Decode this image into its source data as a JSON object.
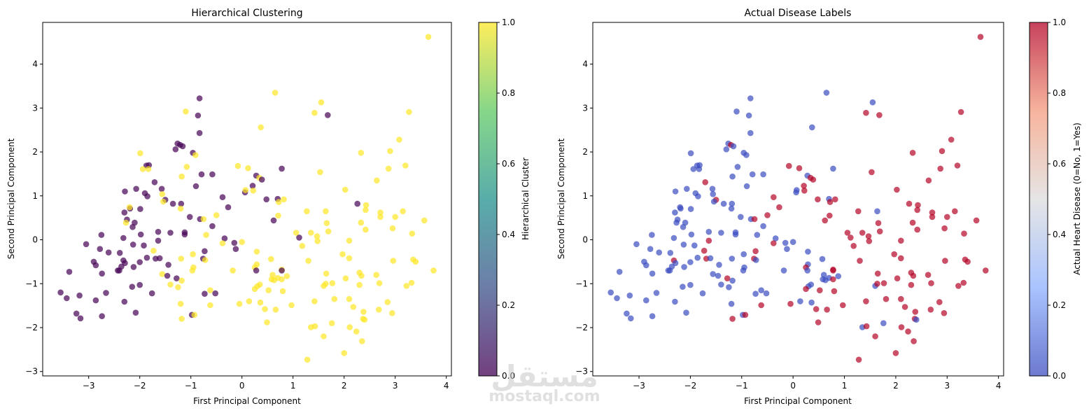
{
  "chart_data": [
    {
      "type": "scatter",
      "id": "hierarchical",
      "title": "Hierarchical Clustering",
      "xlabel": "First Principal Component",
      "ylabel": "Second Principal Component",
      "xlim": [
        -3.9,
        4.1
      ],
      "ylim": [
        -3.1,
        4.95
      ],
      "xticks": [
        -3,
        -2,
        -1,
        0,
        1,
        2,
        3,
        4
      ],
      "xtick_labels": [
        "−3",
        "−2",
        "−1",
        "0",
        "1",
        "2",
        "3",
        "4"
      ],
      "yticks": [
        -3,
        -2,
        -1,
        0,
        1,
        2,
        3,
        4
      ],
      "ytick_labels": [
        "−3",
        "−2",
        "−1",
        "0",
        "1",
        "2",
        "3",
        "4"
      ],
      "color_field": "cluster",
      "colormap": "viridis",
      "alpha": 0.7,
      "colorbar": {
        "label": "Hierarchical Cluster",
        "range": [
          0.0,
          1.0
        ],
        "ticks": [
          "0.0",
          "0.2",
          "0.4",
          "0.6",
          "0.8",
          "1.0"
        ],
        "stops": [
          "#440154",
          "#3b528b",
          "#21918c",
          "#5ec962",
          "#fde725"
        ]
      },
      "grid": false
    },
    {
      "type": "scatter",
      "id": "actual",
      "title": "Actual Disease Labels",
      "xlabel": "First Principal Component",
      "ylabel": "Second Principal Component",
      "xlim": [
        -3.9,
        4.1
      ],
      "ylim": [
        -3.1,
        4.95
      ],
      "xticks": [
        -3,
        -2,
        -1,
        0,
        1,
        2,
        3,
        4
      ],
      "xtick_labels": [
        "−3",
        "−2",
        "−1",
        "0",
        "1",
        "2",
        "3",
        "4"
      ],
      "yticks": [
        -3,
        -2,
        -1,
        0,
        1,
        2,
        3,
        4
      ],
      "ytick_labels": [
        "−3",
        "−2",
        "−1",
        "0",
        "1",
        "2",
        "3",
        "4"
      ],
      "color_field": "disease",
      "colormap": "coolwarm",
      "alpha": 0.7,
      "colorbar": {
        "label": "Actual Heart Disease (0=No, 1=Yes)",
        "range": [
          0.0,
          1.0
        ],
        "ticks": [
          "0.0",
          "0.2",
          "0.4",
          "0.6",
          "0.8",
          "1.0"
        ],
        "stops": [
          "#3b4cc0",
          "#8db0fe",
          "#dddddd",
          "#f49a7b",
          "#b40426"
        ]
      },
      "grid": false
    }
  ],
  "points_fields": [
    "x",
    "y",
    "cluster",
    "disease"
  ],
  "points": [
    [
      3.65,
      4.62,
      1,
      1
    ],
    [
      0.65,
      3.35,
      1,
      0
    ],
    [
      1.55,
      3.13,
      1,
      0
    ],
    [
      1.42,
      2.89,
      1,
      1
    ],
    [
      1.68,
      2.84,
      0,
      1
    ],
    [
      3.27,
      2.91,
      1,
      1
    ],
    [
      -0.83,
      3.22,
      0,
      0
    ],
    [
      -1.1,
      2.92,
      1,
      0
    ],
    [
      -0.86,
      2.83,
      0,
      0
    ],
    [
      -0.83,
      2.43,
      0,
      0
    ],
    [
      0.37,
      2.56,
      1,
      0
    ],
    [
      3.08,
      2.28,
      1,
      1
    ],
    [
      2.33,
      1.98,
      1,
      1
    ],
    [
      2.9,
      2.02,
      1,
      1
    ],
    [
      -1.26,
      2.19,
      0,
      0
    ],
    [
      -1.21,
      2.16,
      0,
      1
    ],
    [
      -1.16,
      2.13,
      0,
      0
    ],
    [
      -1.3,
      2.06,
      0,
      0
    ],
    [
      -0.96,
      1.98,
      0,
      0
    ],
    [
      -0.91,
      1.93,
      1,
      0
    ],
    [
      -1.99,
      1.97,
      1,
      0
    ],
    [
      -1.87,
      1.69,
      0,
      0
    ],
    [
      -1.82,
      1.7,
      0,
      0
    ],
    [
      -1.94,
      1.61,
      1,
      0
    ],
    [
      -1.83,
      1.61,
      1,
      0
    ],
    [
      -1.08,
      1.66,
      1,
      0
    ],
    [
      -1.18,
      1.44,
      1,
      0
    ],
    [
      -0.79,
      1.49,
      0,
      0
    ],
    [
      -0.58,
      1.49,
      0,
      0
    ],
    [
      -0.9,
      1.22,
      0,
      0
    ],
    [
      -0.08,
      1.68,
      1,
      1
    ],
    [
      0.12,
      1.63,
      1,
      1
    ],
    [
      0.28,
      1.46,
      0,
      0
    ],
    [
      0.34,
      1.41,
      1,
      1
    ],
    [
      0.21,
      1.23,
      0,
      1
    ],
    [
      0.22,
      1.12,
      1,
      1
    ],
    [
      0.39,
      1.37,
      0,
      1
    ],
    [
      0.78,
      1.62,
      0,
      0
    ],
    [
      1.53,
      1.54,
      1,
      1
    ],
    [
      2.02,
      1.14,
      1,
      1
    ],
    [
      2.64,
      1.35,
      1,
      1
    ],
    [
      2.87,
      1.62,
      1,
      1
    ],
    [
      3.2,
      1.69,
      1,
      1
    ],
    [
      -2.29,
      1.1,
      0,
      0
    ],
    [
      -2.07,
      1.16,
      0,
      0
    ],
    [
      -1.9,
      1.06,
      0,
      0
    ],
    [
      -1.71,
      1.31,
      0,
      1
    ],
    [
      -1.85,
      0.99,
      0,
      0
    ],
    [
      -1.57,
      1.16,
      0,
      0
    ],
    [
      -1.56,
      1.04,
      1,
      0
    ],
    [
      -1.5,
      0.91,
      0,
      1
    ],
    [
      -1.54,
      0.87,
      1,
      0
    ],
    [
      -1.19,
      0.82,
      0,
      0
    ],
    [
      -1.35,
      0.82,
      0,
      0
    ],
    [
      -2.19,
      0.71,
      0,
      0
    ],
    [
      -2.2,
      0.74,
      1,
      0
    ],
    [
      -1.99,
      0.7,
      0,
      0
    ],
    [
      -2.3,
      0.62,
      0,
      0
    ],
    [
      -2.25,
      0.46,
      0,
      0
    ],
    [
      -2.27,
      0.39,
      1,
      0
    ],
    [
      -2.1,
      0.39,
      0,
      0
    ],
    [
      -2.14,
      0.29,
      0,
      0
    ],
    [
      -1.2,
      0.71,
      1,
      0
    ],
    [
      -1.02,
      0.52,
      0,
      0
    ],
    [
      -0.82,
      0.47,
      0,
      0
    ],
    [
      -0.75,
      0.47,
      1,
      1
    ],
    [
      -0.58,
      0.31,
      0,
      0
    ],
    [
      -0.5,
      0.56,
      1,
      1
    ],
    [
      -0.27,
      0.74,
      0,
      1
    ],
    [
      -0.38,
      0.97,
      0,
      1
    ],
    [
      0.06,
      1.08,
      0,
      0
    ],
    [
      0.07,
      1.13,
      1,
      0
    ],
    [
      0.48,
      0.92,
      0,
      1
    ],
    [
      0.7,
      0.93,
      0,
      0
    ],
    [
      0.82,
      0.92,
      1,
      1
    ],
    [
      0.72,
      0.86,
      1,
      1
    ],
    [
      0.71,
      0.55,
      1,
      1
    ],
    [
      0.62,
      0.44,
      0,
      1
    ],
    [
      1.27,
      0.65,
      1,
      1
    ],
    [
      1.64,
      0.65,
      1,
      0
    ],
    [
      1.66,
      0.38,
      1,
      1
    ],
    [
      1.69,
      0.19,
      1,
      1
    ],
    [
      2.26,
      0.82,
      0,
      1
    ],
    [
      2.43,
      0.79,
      1,
      1
    ],
    [
      2.42,
      0.68,
      1,
      1
    ],
    [
      2.71,
      0.62,
      1,
      1
    ],
    [
      2.71,
      0.52,
      1,
      1
    ],
    [
      3.0,
      0.52,
      1,
      1
    ],
    [
      3.15,
      0.65,
      1,
      1
    ],
    [
      2.33,
      0.39,
      1,
      1
    ],
    [
      2.42,
      0.23,
      1,
      1
    ],
    [
      2.95,
      0.26,
      1,
      1
    ],
    [
      3.33,
      0.14,
      1,
      1
    ],
    [
      3.57,
      0.44,
      1,
      1
    ],
    [
      -1.98,
      0.12,
      0,
      0
    ],
    [
      -1.64,
      0.18,
      0,
      0
    ],
    [
      -1.4,
      0.16,
      0,
      0
    ],
    [
      -1.12,
      0.17,
      0,
      0
    ],
    [
      -1.12,
      0.12,
      0,
      0
    ],
    [
      -0.7,
      0.11,
      1,
      0
    ],
    [
      -0.34,
      0.03,
      0,
      0
    ],
    [
      -0.38,
      -0.08,
      1,
      1
    ],
    [
      -0.15,
      -0.07,
      0,
      0
    ],
    [
      0.0,
      -0.05,
      1,
      0
    ],
    [
      -0.12,
      -0.21,
      0,
      0
    ],
    [
      -1.64,
      -0.02,
      0,
      1
    ],
    [
      -2.32,
      0.04,
      0,
      0
    ],
    [
      -2.75,
      0.11,
      0,
      0
    ],
    [
      -3.05,
      -0.1,
      0,
      0
    ],
    [
      -2.13,
      -0.11,
      0,
      0
    ],
    [
      -1.92,
      -0.13,
      0,
      0
    ],
    [
      -2.78,
      -0.21,
      0,
      0
    ],
    [
      -2.61,
      -0.29,
      0,
      0
    ],
    [
      -2.39,
      -0.3,
      0,
      0
    ],
    [
      -1.73,
      -0.25,
      1,
      1
    ],
    [
      -1.19,
      -0.43,
      1,
      0
    ],
    [
      -0.96,
      -0.33,
      1,
      0
    ],
    [
      -0.73,
      -0.26,
      0,
      1
    ],
    [
      -0.76,
      -0.43,
      0,
      1
    ],
    [
      -0.72,
      -0.46,
      1,
      0
    ],
    [
      -1.86,
      -0.41,
      0,
      0
    ],
    [
      -1.69,
      -0.43,
      0,
      1
    ],
    [
      -1.61,
      -0.42,
      0,
      0
    ],
    [
      -2.0,
      -0.51,
      0,
      0
    ],
    [
      -2.32,
      -0.47,
      0,
      1
    ],
    [
      -2.29,
      -0.53,
      0,
      0
    ],
    [
      -2.36,
      -0.61,
      0,
      0
    ],
    [
      -2.12,
      -0.62,
      0,
      0
    ],
    [
      -1.44,
      -0.57,
      0,
      0
    ],
    [
      -2.9,
      -0.5,
      0,
      0
    ],
    [
      -2.86,
      -0.58,
      0,
      0
    ],
    [
      -2.43,
      -0.7,
      0,
      0
    ],
    [
      -2.4,
      -0.7,
      0,
      0
    ],
    [
      -3.38,
      -0.73,
      0,
      0
    ],
    [
      -2.74,
      -0.77,
      0,
      0
    ],
    [
      -1.56,
      -0.78,
      1,
      0
    ],
    [
      -1.46,
      -0.82,
      0,
      0
    ],
    [
      -1.28,
      -0.88,
      0,
      1
    ],
    [
      -1.18,
      -0.93,
      1,
      0
    ],
    [
      -1.4,
      -1.02,
      1,
      0
    ],
    [
      -1.25,
      -1.08,
      1,
      0
    ],
    [
      -0.95,
      -0.63,
      1,
      0
    ],
    [
      -0.97,
      -0.7,
      1,
      0
    ],
    [
      -0.18,
      -0.7,
      1,
      0
    ],
    [
      0.29,
      -0.27,
      1,
      0
    ],
    [
      0.57,
      -0.44,
      1,
      0
    ],
    [
      0.29,
      -0.56,
      1,
      0
    ],
    [
      0.25,
      -0.63,
      1,
      1
    ],
    [
      0.28,
      -0.7,
      0,
      0
    ],
    [
      0.6,
      -0.8,
      1,
      0
    ],
    [
      0.58,
      -0.9,
      1,
      0
    ],
    [
      0.63,
      -0.92,
      1,
      0
    ],
    [
      0.7,
      -0.87,
      1,
      0
    ],
    [
      0.78,
      -0.68,
      1,
      1
    ],
    [
      0.78,
      -0.7,
      0,
      1
    ],
    [
      0.78,
      -0.9,
      1,
      1
    ],
    [
      0.88,
      -0.83,
      1,
      0
    ],
    [
      1.3,
      -0.48,
      1,
      1
    ],
    [
      1.06,
      0.16,
      1,
      1
    ],
    [
      1.12,
      0.05,
      0,
      1
    ],
    [
      1.35,
      0.16,
      1,
      1
    ],
    [
      1.47,
      0.08,
      1,
      1
    ],
    [
      1.48,
      -0.03,
      1,
      1
    ],
    [
      1.18,
      -0.14,
      1,
      1
    ],
    [
      2.1,
      -0.02,
      1,
      1
    ],
    [
      1.97,
      -0.33,
      1,
      1
    ],
    [
      2.1,
      -0.42,
      1,
      1
    ],
    [
      2.96,
      -0.48,
      1,
      1
    ],
    [
      3.35,
      -0.45,
      1,
      1
    ],
    [
      3.4,
      -0.5,
      1,
      1
    ],
    [
      3.75,
      -0.7,
      1,
      1
    ],
    [
      1.65,
      -0.77,
      1,
      1
    ],
    [
      2.03,
      -0.88,
      1,
      1
    ],
    [
      2.3,
      -0.75,
      1,
      1
    ],
    [
      2.34,
      -0.82,
      1,
      1
    ],
    [
      2.63,
      -0.8,
      1,
      1
    ],
    [
      1.6,
      -1.05,
      1,
      0
    ],
    [
      1.64,
      -1.0,
      1,
      1
    ],
    [
      1.77,
      -0.99,
      1,
      1
    ],
    [
      2.3,
      -1.03,
      1,
      1
    ],
    [
      2.69,
      -0.99,
      1,
      1
    ],
    [
      3.22,
      -1.05,
      1,
      1
    ],
    [
      3.32,
      -0.98,
      1,
      1
    ],
    [
      0.3,
      -1.06,
      1,
      0
    ],
    [
      0.35,
      -1.02,
      1,
      0
    ],
    [
      0.25,
      -1.12,
      1,
      1
    ],
    [
      0.52,
      -1.15,
      1,
      1
    ],
    [
      0.8,
      -1.17,
      1,
      1
    ],
    [
      -0.62,
      -1.15,
      1,
      0
    ],
    [
      -0.73,
      -1.23,
      0,
      0
    ],
    [
      -0.52,
      -1.22,
      0,
      0
    ],
    [
      -1.76,
      -1.22,
      0,
      0
    ],
    [
      -2.15,
      -1.07,
      0,
      0
    ],
    [
      -2.0,
      -1.03,
      0,
      0
    ],
    [
      -3.55,
      -1.2,
      0,
      0
    ],
    [
      -3.43,
      -1.33,
      0,
      0
    ],
    [
      -3.18,
      -1.27,
      0,
      0
    ],
    [
      -2.66,
      -1.21,
      0,
      0
    ],
    [
      -2.86,
      -1.38,
      0,
      0
    ],
    [
      -2.3,
      -1.41,
      0,
      0
    ],
    [
      -1.2,
      -1.46,
      1,
      0
    ],
    [
      -0.62,
      -1.49,
      1,
      1
    ],
    [
      -0.05,
      -1.46,
      1,
      1
    ],
    [
      0.14,
      -1.4,
      1,
      0
    ],
    [
      0.36,
      -1.43,
      1,
      0
    ],
    [
      0.45,
      -1.58,
      1,
      1
    ],
    [
      0.66,
      -1.59,
      1,
      1
    ],
    [
      0.97,
      -1.49,
      1,
      1
    ],
    [
      0.49,
      -1.88,
      1,
      1
    ],
    [
      1.42,
      -1.4,
      1,
      1
    ],
    [
      1.81,
      -1.35,
      1,
      1
    ],
    [
      2.1,
      -1.35,
      1,
      1
    ],
    [
      2.85,
      -1.42,
      1,
      1
    ],
    [
      2.18,
      -1.53,
      1,
      1
    ],
    [
      2.38,
      -1.64,
      1,
      1
    ],
    [
      2.68,
      -1.59,
      1,
      1
    ],
    [
      2.94,
      -1.67,
      1,
      1
    ],
    [
      2.37,
      -1.8,
      1,
      1
    ],
    [
      2.4,
      -1.82,
      1,
      0
    ],
    [
      1.35,
      -1.99,
      1,
      0
    ],
    [
      1.43,
      -1.97,
      1,
      1
    ],
    [
      1.76,
      -1.9,
      1,
      0
    ],
    [
      2.11,
      -1.99,
      1,
      1
    ],
    [
      2.24,
      -2.09,
      1,
      1
    ],
    [
      1.6,
      -2.2,
      1,
      1
    ],
    [
      2.35,
      -2.31,
      1,
      1
    ],
    [
      2.0,
      -2.58,
      1,
      1
    ],
    [
      1.28,
      -2.73,
      1,
      1
    ],
    [
      -3.24,
      -1.68,
      0,
      0
    ],
    [
      -3.16,
      -1.79,
      0,
      0
    ],
    [
      -2.74,
      -1.74,
      0,
      0
    ],
    [
      -2.08,
      -1.66,
      0,
      0
    ],
    [
      -1.18,
      -1.8,
      1,
      1
    ],
    [
      -0.98,
      -1.71,
      0,
      0
    ],
    [
      -0.93,
      -1.71,
      1,
      1
    ]
  ],
  "watermark": {
    "arabic": "مستقل",
    "latin": "mostaql.com"
  }
}
